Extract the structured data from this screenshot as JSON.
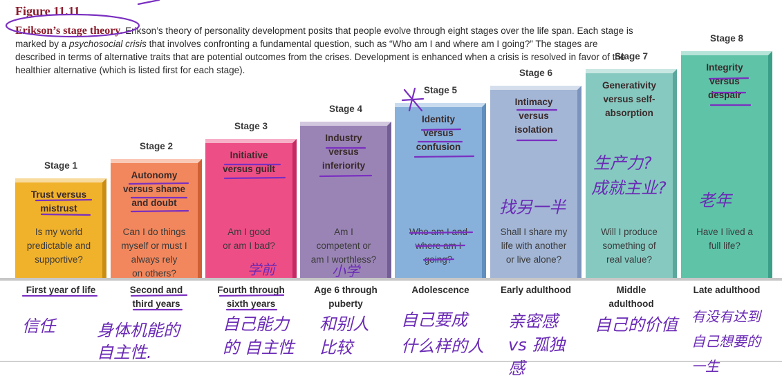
{
  "figure": {
    "number": "Figure 11.11",
    "lead": "Erikson’s stage theory.",
    "caption_part1": " Erikson’s theory of personality development posits that people evolve through eight stages over the life span. Each stage is marked by a ",
    "caption_italic": "psychosocial crisis",
    "caption_part2": " that involves confronting a fundamental question, such as “Who am I and where am I going?” The stages are described in terms of alternative traits that are potential outcomes from the crises. Development is enhanced when a crisis is resolved in favor of the healthier alternative (which is listed first for each stage)."
  },
  "stages": [
    {
      "label": "Stage 1",
      "name_lines": [
        "Trust versus",
        "mistrust"
      ],
      "question_lines": [
        "Is my world",
        "predictable and",
        "supportive?"
      ],
      "age_lines": [
        "First year of life"
      ]
    },
    {
      "label": "Stage 2",
      "name_lines": [
        "Autonomy",
        "versus shame",
        "and doubt"
      ],
      "question_lines": [
        "Can I do things",
        "myself or must I",
        "always rely",
        "on others?"
      ],
      "age_lines": [
        "Second and",
        "third years"
      ]
    },
    {
      "label": "Stage 3",
      "name_lines": [
        "Initiative",
        "versus guilt"
      ],
      "question_lines": [
        "Am I good",
        "or am I bad?"
      ],
      "age_lines": [
        "Fourth through",
        "sixth years"
      ]
    },
    {
      "label": "Stage 4",
      "name_lines": [
        "Industry",
        "versus",
        "inferiority"
      ],
      "question_lines": [
        "Am I",
        "competent or",
        "am I worthless?"
      ],
      "age_lines": [
        "Age 6 through",
        "puberty"
      ]
    },
    {
      "label": "Stage 5",
      "name_lines": [
        "Identity",
        "versus",
        "confusion"
      ],
      "question_lines": [
        "Who am I and",
        "where am I",
        "going?"
      ],
      "age_lines": [
        "Adolescence"
      ]
    },
    {
      "label": "Stage 6",
      "name_lines": [
        "Intimacy",
        "versus",
        "isolation"
      ],
      "question_lines": [
        "Shall I share my",
        "life with another",
        "or live alone?"
      ],
      "age_lines": [
        "Early adulthood"
      ]
    },
    {
      "label": "Stage 7",
      "name_lines": [
        "Generativity",
        "versus self-",
        "absorption"
      ],
      "question_lines": [
        "Will I produce",
        "something of",
        "real value?"
      ],
      "age_lines": [
        "Middle",
        "adulthood"
      ]
    },
    {
      "label": "Stage 8",
      "name_lines": [
        "Integrity",
        "versus",
        "despair"
      ],
      "question_lines": [
        "Have I lived a",
        "full life?"
      ],
      "age_lines": [
        "Late adulthood"
      ]
    }
  ],
  "handwritten_notes": {
    "stage1_bottom": "信任",
    "stage2_bottom": "身体机能的 自主性.",
    "stage3_bottom": "自己能力的 自主性",
    "stage3_above_age": "学前",
    "stage4_above_age": "小学",
    "stage4_bottom": "和别人 比较",
    "stage5_bottom": "自己要成 什么样的人",
    "stage6_block": "找另一半",
    "stage6_bottom": "亲密感 vs 孤独感",
    "stage7_block_1": "生产力?",
    "stage7_block_2": "成就主业?",
    "stage7_bottom": "自己的价值",
    "stage8_block": "老年",
    "stage8_bottom": "有没有达到 自己想要的 一生"
  }
}
